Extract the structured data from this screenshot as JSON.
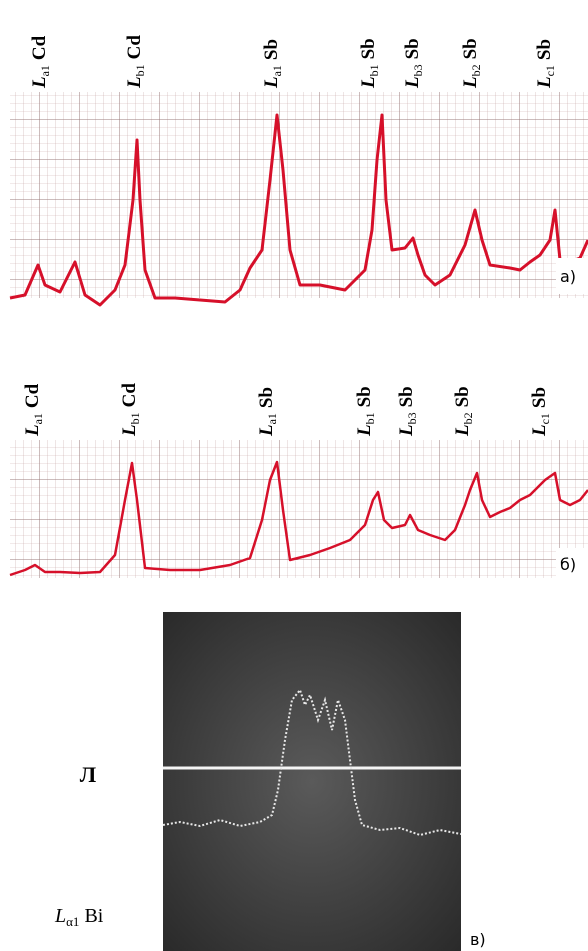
{
  "panels": [
    {
      "label": "а)",
      "peaks": [
        {
          "symbol": "L",
          "sub": "a1",
          "element": "Cd"
        },
        {
          "symbol": "L",
          "sub": "b1",
          "element": "Cd"
        },
        {
          "symbol": "L",
          "sub": "a1",
          "element": "Sb"
        },
        {
          "symbol": "L",
          "sub": "b1",
          "element": "Sb"
        },
        {
          "symbol": "L",
          "sub": "b3",
          "element": "Sb"
        },
        {
          "symbol": "L",
          "sub": "b2",
          "element": "Sb"
        },
        {
          "symbol": "L",
          "sub": "c1",
          "element": "Sb"
        }
      ]
    },
    {
      "label": "б)",
      "peaks": [
        {
          "symbol": "L",
          "sub": "a1",
          "element": "Cd"
        },
        {
          "symbol": "L",
          "sub": "b1",
          "element": "Cd"
        },
        {
          "symbol": "L",
          "sub": "a1",
          "element": "Sb"
        },
        {
          "symbol": "L",
          "sub": "b1",
          "element": "Sb"
        },
        {
          "symbol": "L",
          "sub": "b3",
          "element": "Sb"
        },
        {
          "symbol": "L",
          "sub": "b2",
          "element": "Sb"
        },
        {
          "symbol": "L",
          "sub": "c1",
          "element": "Sb"
        }
      ]
    }
  ],
  "photo": {
    "label": "в)",
    "left_label": "Л",
    "line_label": {
      "symbol": "L",
      "sub": "α1",
      "element": "Bi"
    }
  }
}
